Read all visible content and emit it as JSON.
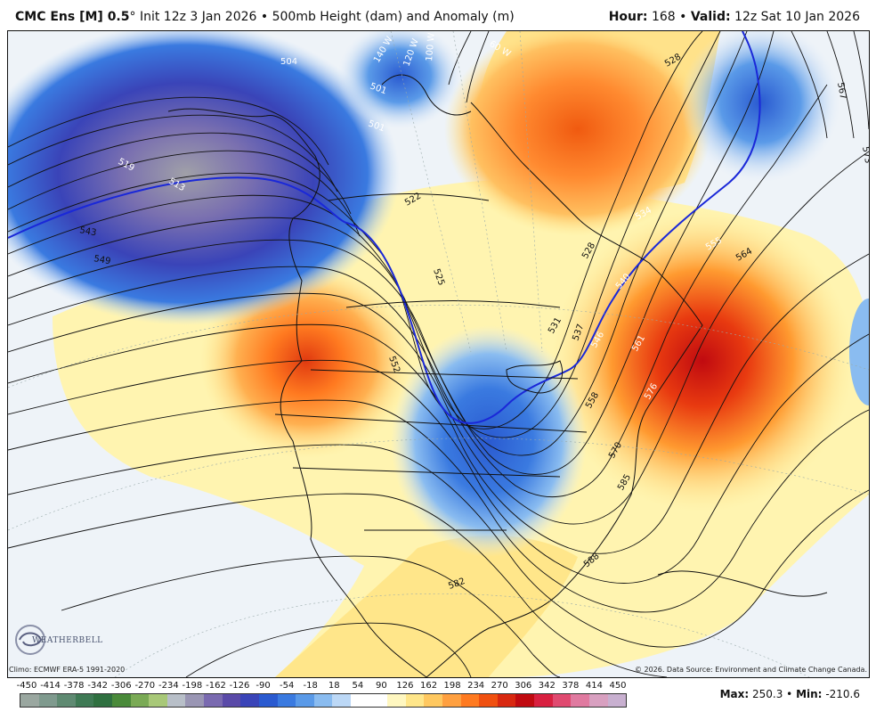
{
  "header": {
    "model": "CMC Ens [M] 0.5",
    "degree": "°",
    "init": "Init 12z 3 Jan 2026",
    "sep": "•",
    "field": "500mb Height (dam) and Anomaly (m)",
    "hour_label": "Hour:",
    "hour_value": "168",
    "valid_label": "Valid:",
    "valid_value": "12z Sat 10 Jan 2026"
  },
  "footer": {
    "climo": "Climo: ECMWF ERA-5 1991-2020",
    "copyright": "© 2026. Data Source: Environment and Climate Change Canada.",
    "max_label": "Max:",
    "max_value": "250.3",
    "min_label": "Min:",
    "min_value": "-210.6",
    "logo_text": "WEATHERBELL"
  },
  "legend": {
    "ticks": [
      "-450",
      "-414",
      "-378",
      "-342",
      "-306",
      "-270",
      "-234",
      "-198",
      "-162",
      "-126",
      "-90",
      "-54",
      "-18",
      "18",
      "54",
      "90",
      "126",
      "162",
      "198",
      "234",
      "270",
      "306",
      "342",
      "378",
      "414",
      "450"
    ],
    "colors": [
      "#9aa7a0",
      "#7f9a8e",
      "#5f8a72",
      "#3f7a55",
      "#2f7040",
      "#4a8a3a",
      "#7aaa55",
      "#a8c878",
      "#b8bfc8",
      "#9a96b4",
      "#7a6ab0",
      "#5a4aa8",
      "#3a44b8",
      "#2a5ad0",
      "#3a7ae0",
      "#5a9ae8",
      "#8abcf0",
      "#bcd8f6",
      "#ffffff",
      "#ffffff",
      "#fff7c0",
      "#ffe68a",
      "#ffc860",
      "#ffa040",
      "#ff7a20",
      "#f05010",
      "#d82810",
      "#c00a10",
      "#d82040",
      "#e04a70",
      "#e07aa0",
      "#d8a0c0",
      "#c8b0d0"
    ]
  },
  "map_labels": {
    "contours": [
      "504",
      "501",
      "501",
      "519",
      "513",
      "543",
      "549",
      "522",
      "525",
      "528",
      "528",
      "552",
      "531",
      "534",
      "537",
      "540",
      "546",
      "555",
      "564",
      "561",
      "558",
      "567",
      "573",
      "576",
      "570",
      "585",
      "588",
      "582"
    ],
    "longitudes": [
      "140 W",
      "120 W",
      "100 W",
      "60 W"
    ]
  }
}
